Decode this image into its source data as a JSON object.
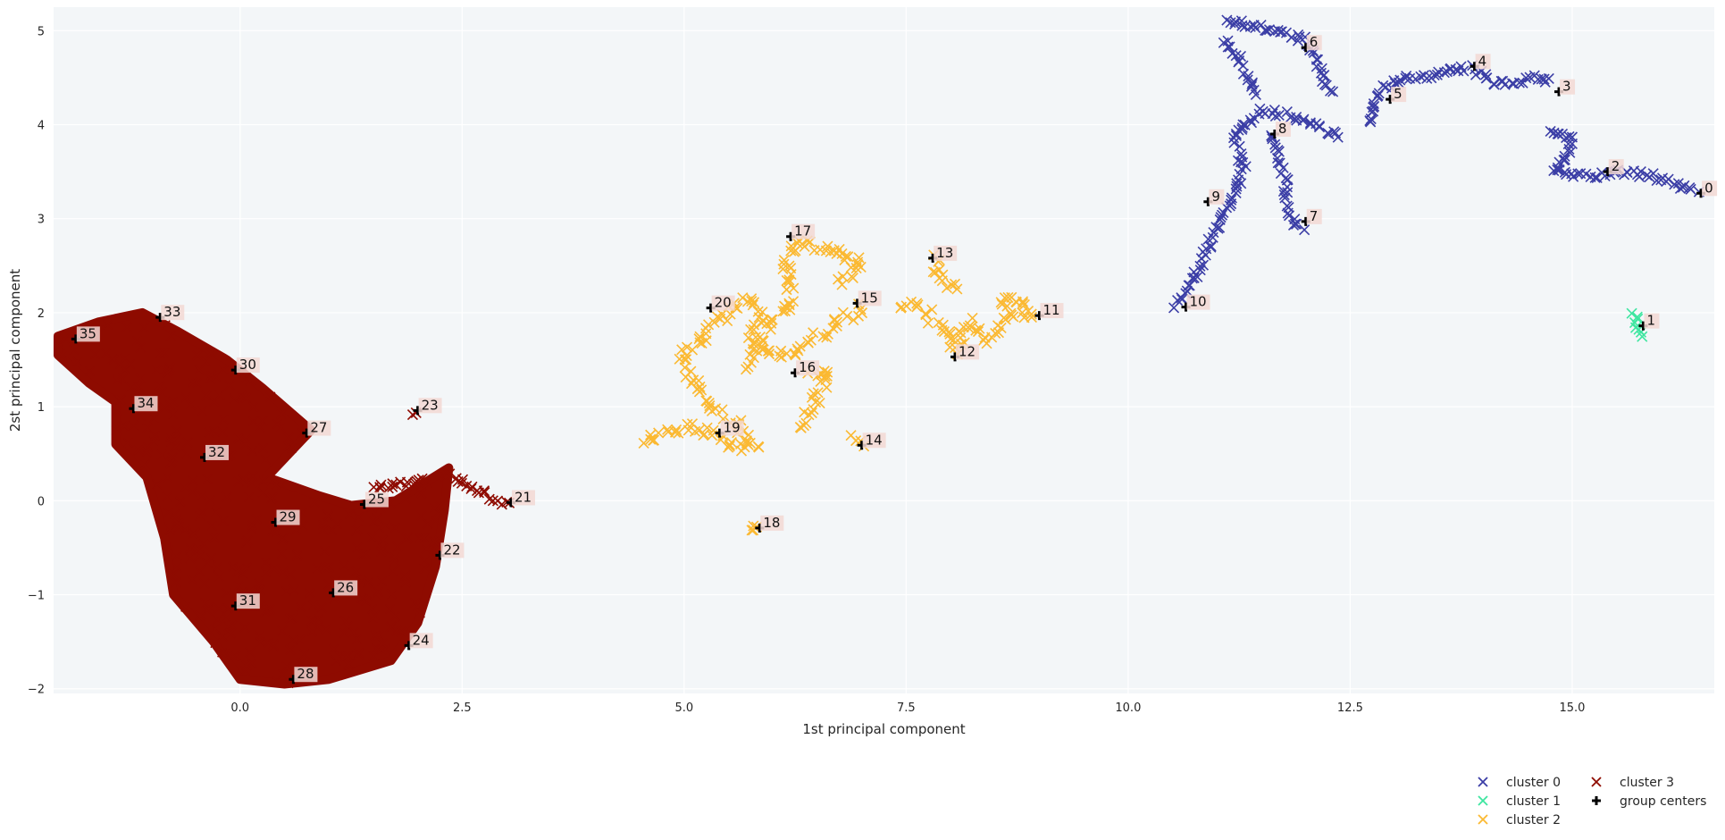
{
  "chart_data": {
    "type": "scatter",
    "title": "",
    "xlabel": "1st principal component",
    "ylabel": "2st principal component",
    "xlim": [
      -2.1,
      16.6
    ],
    "ylim": [
      -2.05,
      5.25
    ],
    "xticks": [
      0.0,
      2.5,
      5.0,
      7.5,
      10.0,
      12.5,
      15.0
    ],
    "xtick_labels": [
      "0.0",
      "2.5",
      "5.0",
      "7.5",
      "10.0",
      "12.5",
      "15.0"
    ],
    "yticks": [
      -2,
      -1,
      0,
      1,
      2,
      3,
      4,
      5
    ],
    "ytick_labels": [
      "−2",
      "−1",
      "0",
      "1",
      "2",
      "3",
      "4",
      "5"
    ],
    "grid": true,
    "legend_position": "bottom-right",
    "series": [
      {
        "name": "cluster 0",
        "marker": "x",
        "color": "#3b3ea6",
        "paths": [
          [
            [
              10.55,
              2.08
            ],
            [
              10.75,
              2.4
            ],
            [
              10.95,
              2.8
            ],
            [
              11.15,
              3.2
            ],
            [
              11.3,
              3.5
            ],
            [
              11.2,
              3.9
            ],
            [
              11.5,
              4.15
            ],
            [
              11.8,
              4.1
            ],
            [
              12.1,
              4.0
            ],
            [
              12.4,
              3.85
            ]
          ],
          [
            [
              11.6,
              3.9
            ],
            [
              11.75,
              3.5
            ],
            [
              11.8,
              3.15
            ],
            [
              11.85,
              2.95
            ],
            [
              12.0,
              2.9
            ]
          ],
          [
            [
              11.1,
              4.9
            ],
            [
              11.3,
              4.6
            ],
            [
              11.45,
              4.3
            ]
          ],
          [
            [
              11.1,
              5.12
            ],
            [
              11.4,
              5.05
            ],
            [
              11.7,
              4.98
            ],
            [
              12.0,
              4.9
            ],
            [
              12.1,
              4.7
            ],
            [
              12.2,
              4.5
            ],
            [
              12.3,
              4.3
            ]
          ],
          [
            [
              12.7,
              4.0
            ],
            [
              12.75,
              4.25
            ],
            [
              12.9,
              4.4
            ],
            [
              13.2,
              4.5
            ],
            [
              13.55,
              4.55
            ],
            [
              13.85,
              4.6
            ],
            [
              14.1,
              4.45
            ],
            [
              14.3,
              4.45
            ],
            [
              14.55,
              4.5
            ],
            [
              14.8,
              4.45
            ]
          ],
          [
            [
              14.75,
              3.95
            ],
            [
              15.0,
              3.85
            ],
            [
              14.9,
              3.6
            ],
            [
              14.8,
              3.5
            ],
            [
              15.2,
              3.45
            ],
            [
              15.6,
              3.5
            ],
            [
              15.9,
              3.45
            ],
            [
              16.2,
              3.35
            ],
            [
              16.45,
              3.3
            ]
          ]
        ]
      },
      {
        "name": "cluster 1",
        "marker": "x",
        "color": "#3ee6a0",
        "paths": [
          [
            [
              15.7,
              1.98
            ],
            [
              15.75,
              1.92
            ],
            [
              15.72,
              1.85
            ],
            [
              15.78,
              1.8
            ],
            [
              15.74,
              1.75
            ]
          ]
        ]
      },
      {
        "name": "cluster 2",
        "marker": "x",
        "color": "#fbb932",
        "paths": [
          [
            [
              4.55,
              0.65
            ],
            [
              4.8,
              0.7
            ],
            [
              5.0,
              0.78
            ],
            [
              5.3,
              0.7
            ],
            [
              5.5,
              0.62
            ],
            [
              5.8,
              0.55
            ],
            [
              5.6,
              0.8
            ],
            [
              5.3,
              1.0
            ],
            [
              5.1,
              1.3
            ],
            [
              4.95,
              1.5
            ],
            [
              5.2,
              1.75
            ],
            [
              5.45,
              1.95
            ],
            [
              5.7,
              2.15
            ],
            [
              5.9,
              2.0
            ],
            [
              5.75,
              1.7
            ],
            [
              6.0,
              1.55
            ],
            [
              6.3,
              1.6
            ],
            [
              6.6,
              1.8
            ],
            [
              6.85,
              1.95
            ],
            [
              7.05,
              2.1
            ]
          ],
          [
            [
              5.7,
              1.4
            ],
            [
              5.95,
              1.85
            ],
            [
              6.2,
              2.1
            ],
            [
              6.15,
              2.5
            ],
            [
              6.25,
              2.75
            ],
            [
              6.55,
              2.7
            ],
            [
              6.85,
              2.6
            ],
            [
              7.0,
              2.5
            ],
            [
              6.75,
              2.3
            ]
          ],
          [
            [
              6.3,
              0.75
            ],
            [
              6.5,
              1.1
            ],
            [
              6.6,
              1.4
            ],
            [
              6.4,
              1.35
            ]
          ],
          [
            [
              7.45,
              2.1
            ],
            [
              7.75,
              2.0
            ],
            [
              7.9,
              1.8
            ],
            [
              8.05,
              1.6
            ],
            [
              8.2,
              1.9
            ],
            [
              8.45,
              1.72
            ],
            [
              8.65,
              1.95
            ],
            [
              8.9,
              2.0
            ],
            [
              8.7,
              2.2
            ],
            [
              8.5,
              2.05
            ]
          ],
          [
            [
              7.8,
              2.6
            ],
            [
              7.9,
              2.35
            ],
            [
              8.1,
              2.2
            ]
          ],
          [
            [
              6.9,
              0.68
            ],
            [
              6.95,
              0.6
            ],
            [
              7.0,
              0.55
            ]
          ],
          [
            [
              5.78,
              -0.22
            ],
            [
              5.82,
              -0.26
            ],
            [
              5.8,
              -0.3
            ]
          ]
        ]
      },
      {
        "name": "cluster 3",
        "marker": "x",
        "color": "#8e0b00",
        "blobs": [
          [
            [
              -2.05,
              1.75
            ],
            [
              -1.6,
              1.9
            ],
            [
              -1.1,
              2.0
            ],
            [
              -0.7,
              1.8
            ],
            [
              -0.15,
              1.5
            ],
            [
              0.25,
              1.2
            ],
            [
              0.8,
              0.75
            ],
            [
              0.3,
              0.25
            ],
            [
              0.9,
              0.05
            ],
            [
              1.25,
              -0.05
            ],
            [
              1.75,
              0.0
            ],
            [
              2.35,
              0.35
            ],
            [
              2.3,
              -0.1
            ],
            [
              2.2,
              -0.7
            ],
            [
              2.0,
              -1.3
            ],
            [
              1.7,
              -1.7
            ],
            [
              1.0,
              -1.9
            ],
            [
              0.5,
              -1.95
            ],
            [
              0.0,
              -1.9
            ],
            [
              -0.3,
              -1.5
            ],
            [
              -0.75,
              -1.0
            ],
            [
              -0.85,
              -0.4
            ],
            [
              -1.05,
              0.25
            ],
            [
              -1.4,
              0.6
            ],
            [
              -1.4,
              1.05
            ],
            [
              -1.7,
              1.25
            ],
            [
              -2.05,
              1.55
            ]
          ]
        ],
        "paths": [
          [
            [
              2.35,
              0.3
            ],
            [
              2.6,
              0.15
            ],
            [
              2.85,
              0.02
            ],
            [
              3.05,
              -0.05
            ]
          ],
          [
            [
              1.95,
              0.92
            ],
            [
              2.0,
              0.95
            ]
          ],
          [
            [
              1.5,
              0.12
            ],
            [
              1.9,
              0.18
            ],
            [
              2.1,
              0.28
            ]
          ]
        ]
      }
    ],
    "centers": {
      "name": "group centers",
      "points": [
        {
          "label": "0",
          "x": 16.45,
          "y": 3.27
        },
        {
          "label": "1",
          "x": 15.8,
          "y": 1.86
        },
        {
          "label": "2",
          "x": 15.4,
          "y": 3.5
        },
        {
          "label": "3",
          "x": 14.85,
          "y": 4.35
        },
        {
          "label": "4",
          "x": 13.9,
          "y": 4.62
        },
        {
          "label": "5",
          "x": 12.95,
          "y": 4.27
        },
        {
          "label": "6",
          "x": 12.0,
          "y": 4.82
        },
        {
          "label": "7",
          "x": 12.0,
          "y": 2.97
        },
        {
          "label": "8",
          "x": 11.65,
          "y": 3.9
        },
        {
          "label": "9",
          "x": 10.9,
          "y": 3.18
        },
        {
          "label": "10",
          "x": 10.65,
          "y": 2.06
        },
        {
          "label": "11",
          "x": 9.0,
          "y": 1.97
        },
        {
          "label": "12",
          "x": 8.05,
          "y": 1.53
        },
        {
          "label": "13",
          "x": 7.8,
          "y": 2.58
        },
        {
          "label": "14",
          "x": 7.0,
          "y": 0.59
        },
        {
          "label": "15",
          "x": 6.95,
          "y": 2.1
        },
        {
          "label": "16",
          "x": 6.25,
          "y": 1.36
        },
        {
          "label": "17",
          "x": 6.2,
          "y": 2.81
        },
        {
          "label": "18",
          "x": 5.85,
          "y": -0.29
        },
        {
          "label": "19",
          "x": 5.4,
          "y": 0.72
        },
        {
          "label": "20",
          "x": 5.3,
          "y": 2.05
        },
        {
          "label": "21",
          "x": 3.05,
          "y": -0.02
        },
        {
          "label": "22",
          "x": 2.25,
          "y": -0.58
        },
        {
          "label": "23",
          "x": 2.0,
          "y": 0.96
        },
        {
          "label": "24",
          "x": 1.9,
          "y": -1.54
        },
        {
          "label": "25",
          "x": 1.4,
          "y": -0.04
        },
        {
          "label": "26",
          "x": 1.05,
          "y": -0.98
        },
        {
          "label": "27",
          "x": 0.75,
          "y": 0.72
        },
        {
          "label": "28",
          "x": 0.6,
          "y": -1.9
        },
        {
          "label": "29",
          "x": 0.4,
          "y": -0.23
        },
        {
          "label": "30",
          "x": -0.05,
          "y": 1.39
        },
        {
          "label": "31",
          "x": -0.05,
          "y": -1.12
        },
        {
          "label": "32",
          "x": -0.4,
          "y": 0.46
        },
        {
          "label": "33",
          "x": -0.9,
          "y": 1.95
        },
        {
          "label": "34",
          "x": -1.2,
          "y": 0.98
        },
        {
          "label": "35",
          "x": -1.85,
          "y": 1.72
        }
      ]
    }
  }
}
